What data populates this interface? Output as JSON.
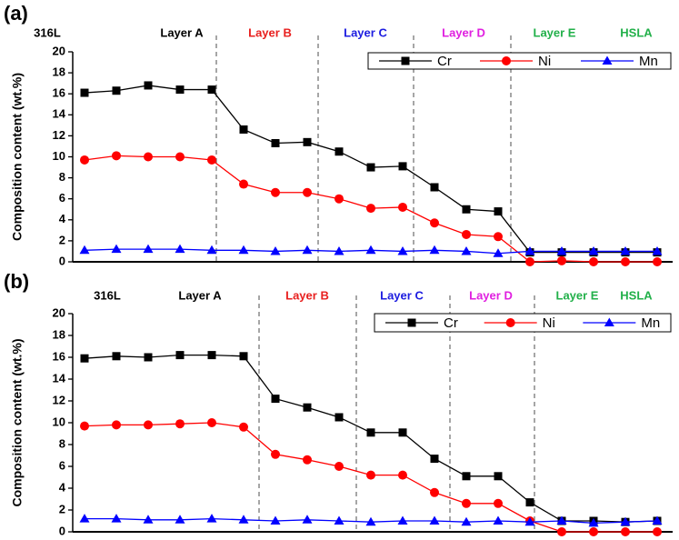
{
  "chart_data": [
    {
      "type": "line",
      "panel_label": "(a)",
      "ylabel": "Composition content (wt.%)",
      "regions": [
        {
          "name": "316L",
          "color": "#000000"
        },
        {
          "name": "Layer A",
          "color": "#000000"
        },
        {
          "name": "Layer B",
          "color": "#e8201f"
        },
        {
          "name": "Layer C",
          "color": "#1d1de0"
        },
        {
          "name": "Layer D",
          "color": "#e020e0"
        },
        {
          "name": "Layer E",
          "color": "#22b04a"
        },
        {
          "name": "HSLA",
          "color": "#22b04a"
        }
      ],
      "categories": [
        null,
        null,
        null,
        null,
        null,
        null,
        null,
        null,
        null,
        null,
        null,
        null,
        null,
        null,
        null,
        null,
        null,
        null,
        null
      ],
      "series": [
        {
          "name": "Cr",
          "color": "#000000",
          "marker": "square",
          "values": [
            16.1,
            16.3,
            16.8,
            16.4,
            16.4,
            12.6,
            11.3,
            11.4,
            10.5,
            9.0,
            9.1,
            7.1,
            5.0,
            4.8,
            0.9,
            0.9,
            0.9,
            0.9,
            0.9
          ]
        },
        {
          "name": "Ni",
          "color": "#ff0000",
          "marker": "circle",
          "values": [
            9.7,
            10.1,
            10.0,
            10.0,
            9.7,
            7.4,
            6.6,
            6.6,
            6.0,
            5.1,
            5.2,
            3.7,
            2.6,
            2.4,
            0,
            0.1,
            0,
            0,
            0
          ]
        },
        {
          "name": "Mn",
          "color": "#0000ff",
          "marker": "triangle",
          "values": [
            1.1,
            1.2,
            1.2,
            1.2,
            1.1,
            1.1,
            1.0,
            1.1,
            1.0,
            1.1,
            1.0,
            1.1,
            1.0,
            0.8,
            1.0,
            1.0,
            1.0,
            1.0,
            1.0
          ]
        }
      ],
      "ylim": [
        0,
        20
      ],
      "yticks": [
        0,
        2,
        4,
        6,
        8,
        10,
        12,
        14,
        16,
        18,
        20
      ],
      "legend": "upper right"
    },
    {
      "type": "line",
      "panel_label": "(b)",
      "ylabel": "Composition content (wt.%)",
      "regions": [
        {
          "name": "316L",
          "color": "#000000"
        },
        {
          "name": "Layer A",
          "color": "#000000"
        },
        {
          "name": "Layer B",
          "color": "#e8201f"
        },
        {
          "name": "Layer C",
          "color": "#1d1de0"
        },
        {
          "name": "Layer D",
          "color": "#e020e0"
        },
        {
          "name": "Layer E",
          "color": "#22b04a"
        },
        {
          "name": "HSLA",
          "color": "#22b04a"
        }
      ],
      "categories": [
        null,
        null,
        null,
        null,
        null,
        null,
        null,
        null,
        null,
        null,
        null,
        null,
        null,
        null,
        null,
        null,
        null,
        null,
        null
      ],
      "series": [
        {
          "name": "Cr",
          "color": "#000000",
          "marker": "square",
          "values": [
            15.9,
            16.1,
            16.0,
            16.2,
            16.2,
            16.1,
            12.2,
            11.4,
            10.5,
            9.1,
            9.1,
            6.7,
            5.1,
            5.1,
            2.7,
            1.0,
            1.0,
            0.9,
            1.0
          ]
        },
        {
          "name": "Ni",
          "color": "#ff0000",
          "marker": "circle",
          "values": [
            9.7,
            9.8,
            9.8,
            9.9,
            10.0,
            9.6,
            7.1,
            6.6,
            6.0,
            5.2,
            5.2,
            3.6,
            2.6,
            2.6,
            1.0,
            0,
            0,
            0,
            0
          ]
        },
        {
          "name": "Mn",
          "color": "#0000ff",
          "marker": "triangle",
          "values": [
            1.2,
            1.2,
            1.1,
            1.1,
            1.2,
            1.1,
            1.0,
            1.1,
            1.0,
            0.9,
            1.0,
            1.0,
            0.9,
            1.0,
            0.9,
            1.0,
            0.8,
            0.9,
            1.0
          ]
        }
      ],
      "ylim": [
        0,
        20
      ],
      "yticks": [
        0,
        2,
        4,
        6,
        8,
        10,
        12,
        14,
        16,
        18,
        20
      ],
      "legend": "upper right"
    }
  ]
}
